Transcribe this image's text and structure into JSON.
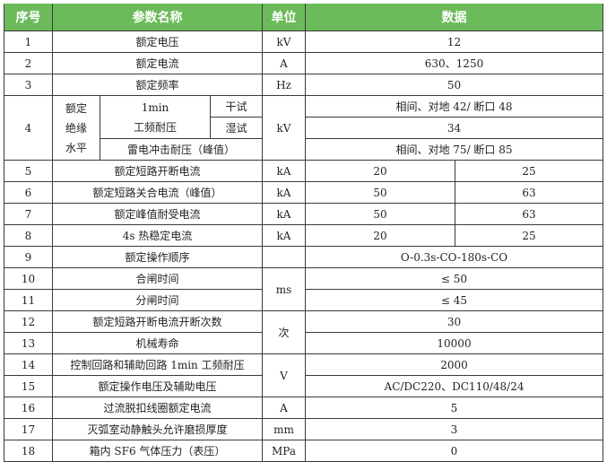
{
  "header": {
    "no": "序号",
    "name": "参数名称",
    "unit": "单位",
    "data": "数据",
    "color": "#6cbb5a"
  },
  "rows": [
    {
      "no": "1",
      "name": "额定电压",
      "unit": "kV",
      "value": "12"
    },
    {
      "no": "2",
      "name": "额定电流",
      "unit": "A",
      "value": "630、1250"
    },
    {
      "no": "3",
      "name": "额定频率",
      "unit": "Hz",
      "value": "50"
    },
    {
      "no": "4",
      "group": "额定绝缘水平",
      "sub1": "1min",
      "sub1b": "工频耐压",
      "dry": "干试",
      "wet": "湿试",
      "lightning": "雷电冲击耐压（峰值）",
      "unit": "kV",
      "dry_value": "相间、对地 42/ 断口 48",
      "wet_value": "34",
      "lightning_value": "相间、对地 75/ 断口 85"
    },
    {
      "no": "5",
      "name": "额定短路开断电流",
      "unit": "kA",
      "values": [
        "20",
        "25"
      ]
    },
    {
      "no": "6",
      "name": "额定短路关合电流（峰值）",
      "unit": "kA",
      "values": [
        "50",
        "63"
      ]
    },
    {
      "no": "7",
      "name": "额定峰值耐受电流",
      "unit": "kA",
      "values": [
        "50",
        "63"
      ]
    },
    {
      "no": "8",
      "name": "4s 热稳定电流",
      "unit": "kA",
      "values": [
        "20",
        "25"
      ]
    },
    {
      "no": "9",
      "name": "额定操作顺序",
      "unit": "",
      "value": "O-0.3s-CO-180s-CO"
    },
    {
      "no": "10",
      "name": "合闸时间",
      "unit": "ms",
      "value": "≤ 50"
    },
    {
      "no": "11",
      "name": "分闸时间",
      "value": "≤ 45"
    },
    {
      "no": "12",
      "name": "额定短路开断电流开断次数",
      "unit": "次",
      "value": "30"
    },
    {
      "no": "13",
      "name": "机械寿命",
      "value": "10000"
    },
    {
      "no": "14",
      "name": "控制回路和辅助回路 1min 工频耐压",
      "unit": "V",
      "value": "2000"
    },
    {
      "no": "15",
      "name": "额定操作电压及辅助电压",
      "value": "AC/DC220、DC110/48/24"
    },
    {
      "no": "16",
      "name": "过流脱扣线圈额定电流",
      "unit": "A",
      "value": "5"
    },
    {
      "no": "17",
      "name": "灭弧室动静触头允许磨损厚度",
      "unit": "mm",
      "value": "3"
    },
    {
      "no": "18",
      "name": "箱内 SF6 气体压力（表压）",
      "unit": "MPa",
      "value": "0"
    }
  ]
}
